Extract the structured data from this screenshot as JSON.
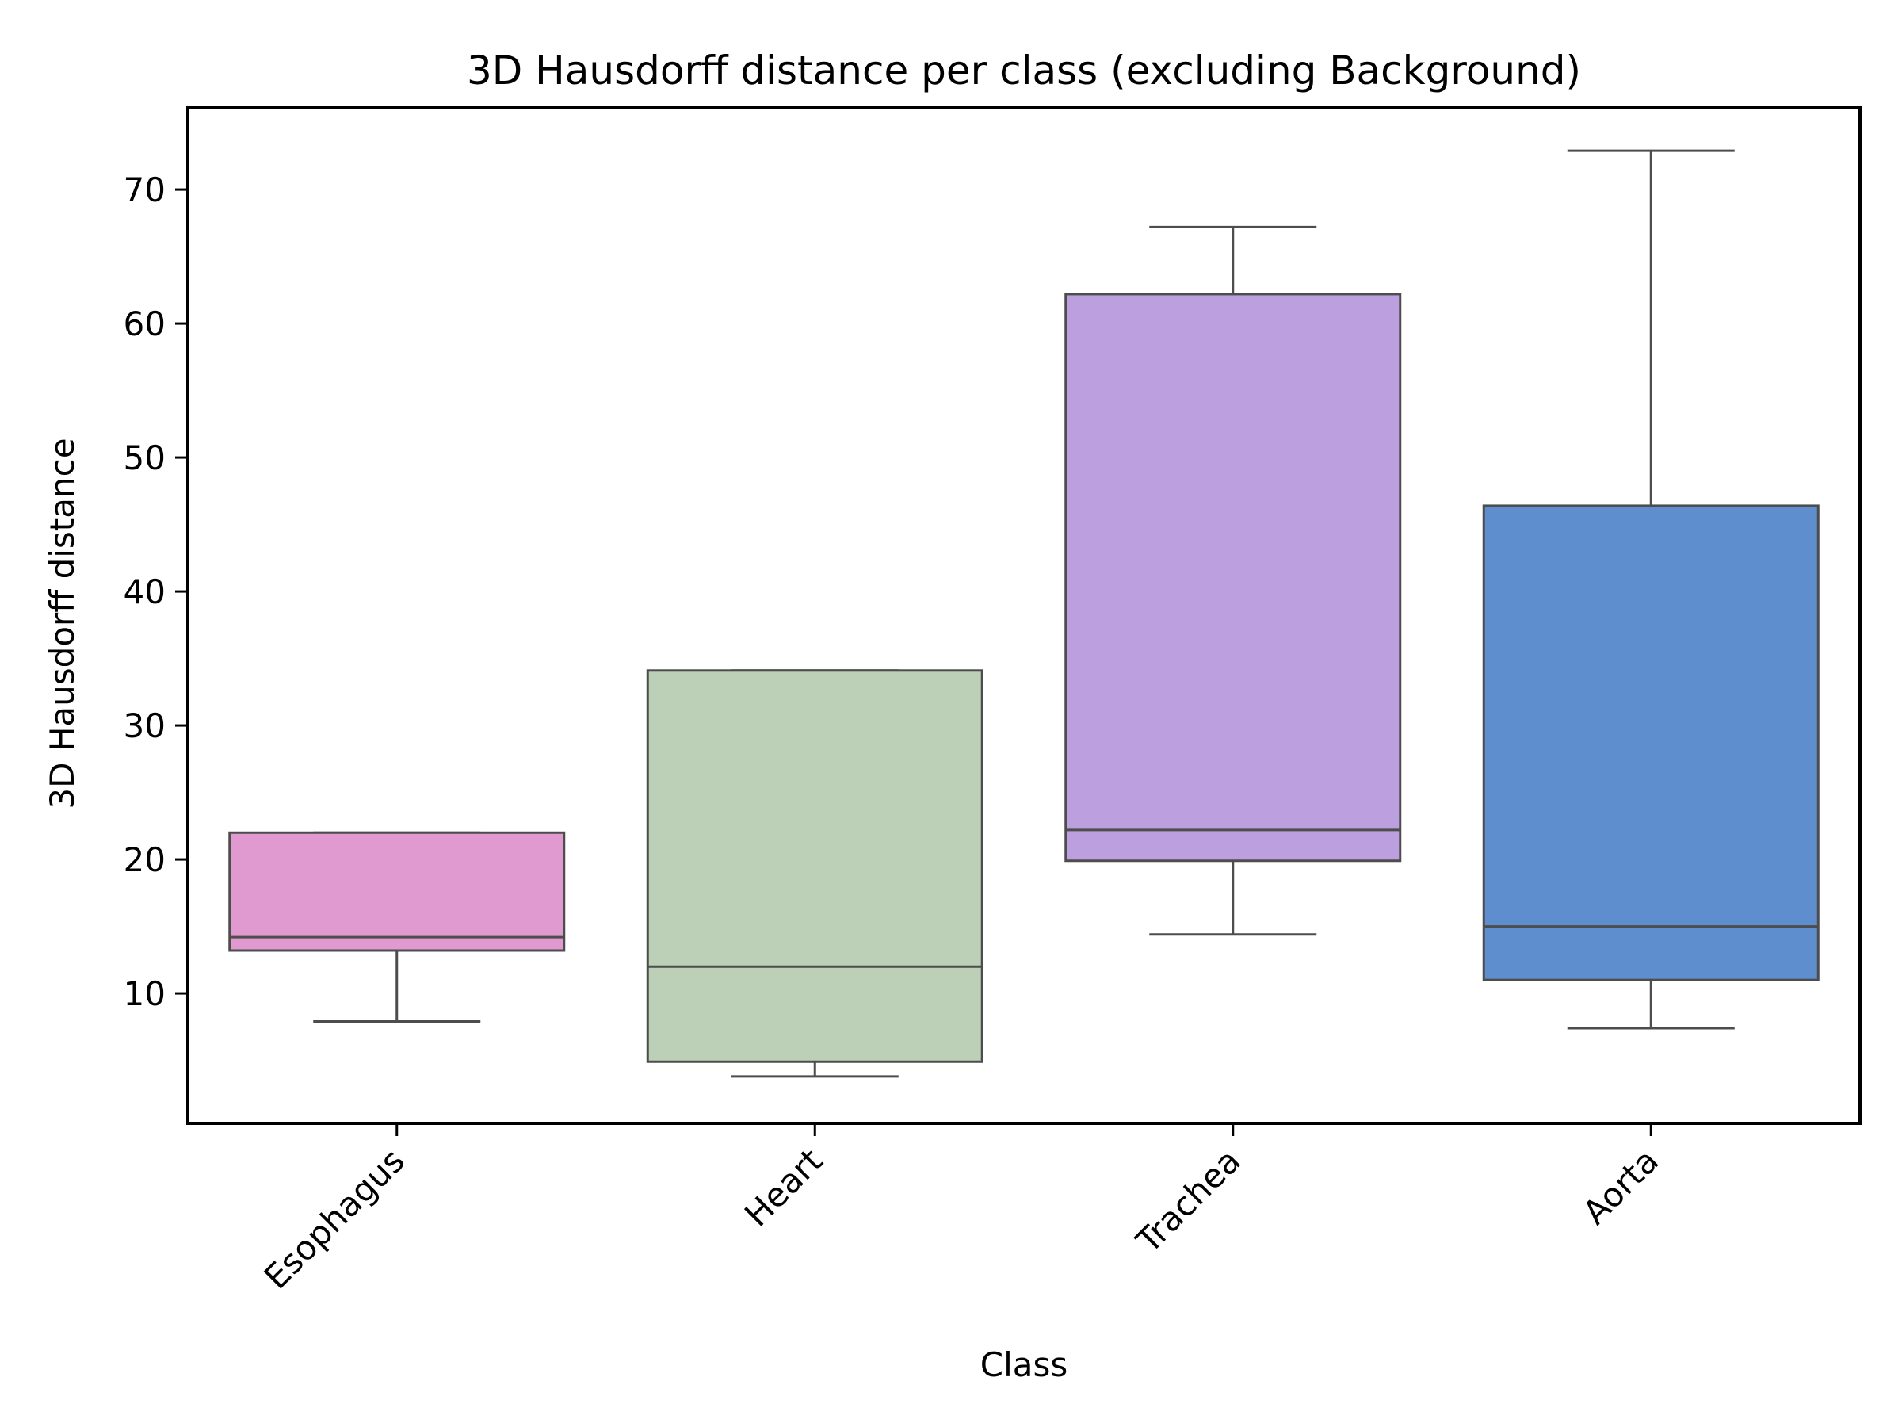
{
  "chart_data": {
    "type": "box",
    "title": "3D Hausdorff distance per class (excluding Background)",
    "xlabel": "Class",
    "ylabel": "3D Hausdorff distance",
    "ylim": [
      0.3,
      76.1
    ],
    "yticks": [
      10,
      20,
      30,
      40,
      50,
      60,
      70
    ],
    "grid": false,
    "categories": [
      "Esophagus",
      "Heart",
      "Trachea",
      "Aorta"
    ],
    "boxes": [
      {
        "name": "Esophagus",
        "whislo": 7.9,
        "q1": 13.2,
        "median": 14.2,
        "q3": 22.0,
        "whishi": 22.0,
        "color": "#e09acf"
      },
      {
        "name": "Heart",
        "whislo": 3.8,
        "q1": 4.9,
        "median": 12.0,
        "q3": 34.1,
        "whishi": 34.1,
        "color": "#bcd0b7"
      },
      {
        "name": "Trachea",
        "whislo": 14.4,
        "q1": 19.9,
        "median": 22.2,
        "q3": 62.2,
        "whishi": 67.2,
        "color": "#bc9fdf"
      },
      {
        "name": "Aorta",
        "whislo": 7.4,
        "q1": 11.0,
        "median": 15.0,
        "q3": 46.4,
        "whishi": 72.9,
        "color": "#5f8ecf"
      }
    ]
  }
}
